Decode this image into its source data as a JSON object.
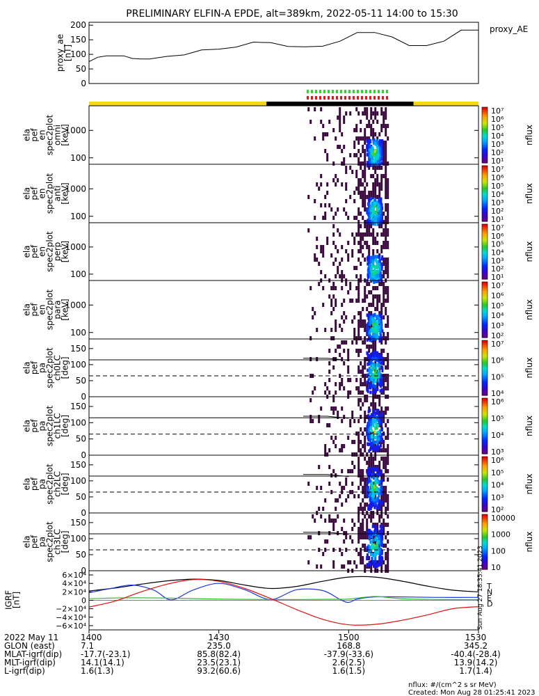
{
  "title": "PRELIMINARY ELFIN-A EPDE, alt=389km, 2022-05-11 14:00 to 15:30",
  "created": "Created: Mon Aug 28 01:25:41 2023",
  "nflux_units": "nflux: #/(cm^2 s sr MeV)",
  "side_stamp": "Sun Aug 27 18:35:41 2023",
  "colors": {
    "orbit_yellow": "#f7d417",
    "orbit_black": "#000000",
    "mark_green": "#22dd22",
    "mark_red": "#ee1111",
    "igrf_T": "#000000",
    "igrf_N": "#1b35e0",
    "igrf_E": "#2ec22e",
    "igrf_D": "#e01010"
  },
  "chart_data": [
    {
      "type": "line",
      "name": "proxy_ae",
      "ylabel": [
        "proxy_ae",
        "[nT]"
      ],
      "legend": "proxy_AE",
      "ylim": [
        0,
        210
      ],
      "yticks": [
        "200",
        "150",
        "100",
        "50",
        "0"
      ],
      "x_minutes": [
        0,
        2,
        4,
        6,
        8,
        10,
        12,
        14,
        18,
        22,
        26,
        30,
        34,
        38,
        42,
        46,
        50,
        54,
        58,
        62,
        66,
        70,
        74,
        78,
        82,
        86,
        90
      ],
      "values": [
        75,
        90,
        95,
        95,
        95,
        86,
        84,
        84,
        93,
        98,
        115,
        118,
        125,
        142,
        140,
        127,
        126,
        128,
        145,
        175,
        175,
        160,
        130,
        130,
        145,
        183,
        183
      ]
    },
    {
      "type": "heatmap",
      "name": "omni",
      "ylabel": [
        "ela",
        "pef",
        "en",
        "spec2plot",
        "omni",
        "[keV]"
      ],
      "yticks": [
        "1000",
        "100"
      ],
      "colorbar": {
        "label": "nflux",
        "ticks": [
          "10⁷",
          "10⁶",
          "10⁵",
          "10⁴",
          "10³",
          "10²",
          "10¹"
        ]
      }
    },
    {
      "type": "heatmap",
      "name": "anti",
      "ylabel": [
        "ela",
        "pef",
        "en",
        "spec2plot",
        "anti",
        "[keV]"
      ],
      "yticks": [
        "1000",
        "100"
      ],
      "colorbar": {
        "label": "nflux",
        "ticks": [
          "10⁷",
          "10⁶",
          "10⁵",
          "10⁴",
          "10³",
          "10²",
          "10¹"
        ]
      }
    },
    {
      "type": "heatmap",
      "name": "perp",
      "ylabel": [
        "ela",
        "pef",
        "en",
        "spec2plot",
        "perp",
        "[keV]"
      ],
      "yticks": [
        "1000",
        "100"
      ],
      "colorbar": {
        "label": "nflux",
        "ticks": [
          "10⁷",
          "10⁶",
          "10⁵",
          "10⁴",
          "10³",
          "10²",
          "10¹"
        ]
      }
    },
    {
      "type": "heatmap",
      "name": "para",
      "ylabel": [
        "ela",
        "pef",
        "en",
        "spec2plot",
        "para",
        "[keV]"
      ],
      "yticks": [
        "1000",
        "100"
      ],
      "colorbar": {
        "label": "nflux",
        "ticks": [
          "10⁷",
          "10⁶",
          "10⁵",
          "10⁴",
          "10³",
          "10²"
        ]
      }
    },
    {
      "type": "heatmap",
      "name": "ch0LC",
      "ylabel": [
        "ela",
        "pef",
        "pa",
        "spec2plot",
        "ch0LC",
        "[deg]"
      ],
      "yticks": [
        "150",
        "100",
        "50",
        "0"
      ],
      "colorbar": {
        "label": "nflux",
        "ticks": [
          "10⁷",
          "10⁶",
          "10⁵",
          "10⁴"
        ]
      }
    },
    {
      "type": "heatmap",
      "name": "ch1LC",
      "ylabel": [
        "ela",
        "pef",
        "pa",
        "spec2plot",
        "ch1LC",
        "[deg]"
      ],
      "yticks": [
        "150",
        "100",
        "50",
        "0"
      ],
      "colorbar": {
        "label": "nflux",
        "ticks": [
          "10⁶",
          "10⁵",
          "10⁴",
          "10³"
        ]
      }
    },
    {
      "type": "heatmap",
      "name": "ch2LC",
      "ylabel": [
        "ela",
        "pef",
        "pa",
        "spec2plot",
        "ch2LC",
        "[deg]"
      ],
      "yticks": [
        "150",
        "100",
        "50",
        "0"
      ],
      "colorbar": {
        "label": "nflux",
        "ticks": [
          "10⁶",
          "10⁵",
          "10⁴",
          "10³",
          "10²"
        ]
      }
    },
    {
      "type": "heatmap",
      "name": "ch3LC",
      "ylabel": [
        "ela",
        "pef",
        "pa",
        "spec2plot",
        "ch3LC",
        "[deg]"
      ],
      "yticks": [
        "150",
        "100",
        "50",
        "0"
      ],
      "colorbar": {
        "label": "nflux",
        "ticks": [
          "10000",
          "1000",
          "100",
          "10"
        ]
      }
    },
    {
      "type": "line",
      "name": "IGRF",
      "ylabel": [
        "IGRF",
        "[nT]"
      ],
      "ylim": [
        -70000,
        70000
      ],
      "yticks": [
        "6×10⁴",
        "4×10⁴",
        "2×10⁴",
        "0",
        "−2×10⁴",
        "−4×10⁴",
        "−6×10⁴"
      ],
      "series": [
        {
          "name": "T",
          "color": "#000000",
          "x_minutes": [
            0,
            6,
            12,
            18,
            24,
            30,
            36,
            42,
            48,
            54,
            60,
            66,
            72,
            78,
            84,
            90
          ],
          "values": [
            22000,
            29000,
            38000,
            46000,
            50000,
            47000,
            36000,
            28000,
            33000,
            45000,
            55000,
            55000,
            46000,
            34000,
            24000,
            20000
          ]
        },
        {
          "name": "N",
          "color": "#1b35e0",
          "x_minutes": [
            0,
            5,
            10,
            15,
            19,
            24,
            30,
            36,
            42,
            48,
            54,
            58,
            60,
            62,
            66,
            72,
            80,
            90
          ],
          "values": [
            18000,
            28000,
            36000,
            24000,
            1000,
            24000,
            40000,
            25000,
            2000,
            25000,
            23000,
            2000,
            -5000,
            3000,
            8000,
            8000,
            7000,
            7000
          ]
        },
        {
          "name": "E",
          "color": "#2ec22e",
          "x_minutes": [
            0,
            10,
            20,
            30,
            40,
            50,
            56,
            60,
            66,
            72,
            80,
            90
          ],
          "values": [
            4000,
            6000,
            5000,
            3000,
            2000,
            2000,
            2500,
            3000,
            9000,
            4000,
            2000,
            1500
          ]
        },
        {
          "name": "D",
          "color": "#e01010",
          "x_minutes": [
            0,
            6,
            12,
            18,
            24,
            30,
            36,
            42,
            48,
            54,
            60,
            66,
            72,
            78,
            84,
            90
          ],
          "values": [
            -16000,
            -2000,
            20000,
            38000,
            49000,
            45000,
            28000,
            4000,
            -22000,
            -45000,
            -58000,
            -57000,
            -48000,
            -35000,
            -20000,
            -15000
          ]
        }
      ]
    }
  ],
  "footer": {
    "rows": [
      {
        "label": "2022 May 11",
        "values": [
          "1400",
          "1430",
          "1500",
          "1530"
        ]
      },
      {
        "label": "GLON (east)",
        "values": [
          "7.1",
          "235.0",
          "168.8",
          "345.2"
        ]
      },
      {
        "label": "MLAT-igrf(dip)",
        "values": [
          "-17.7(-23.1)",
          "85.8(82.4)",
          "-37.9(-33.6)",
          "-40.4(-28.4)"
        ]
      },
      {
        "label": "MLT-igrf(dip)",
        "values": [
          "14.1(14.1)",
          "23.5(23.1)",
          "2.6(2.5)",
          "13.9(14.2)"
        ]
      },
      {
        "label": "L-igrf(dip)",
        "values": [
          "1.6(1.3)",
          "93.2(60.6)",
          "1.6(1.5)",
          "1.7(1.4)"
        ]
      }
    ]
  }
}
